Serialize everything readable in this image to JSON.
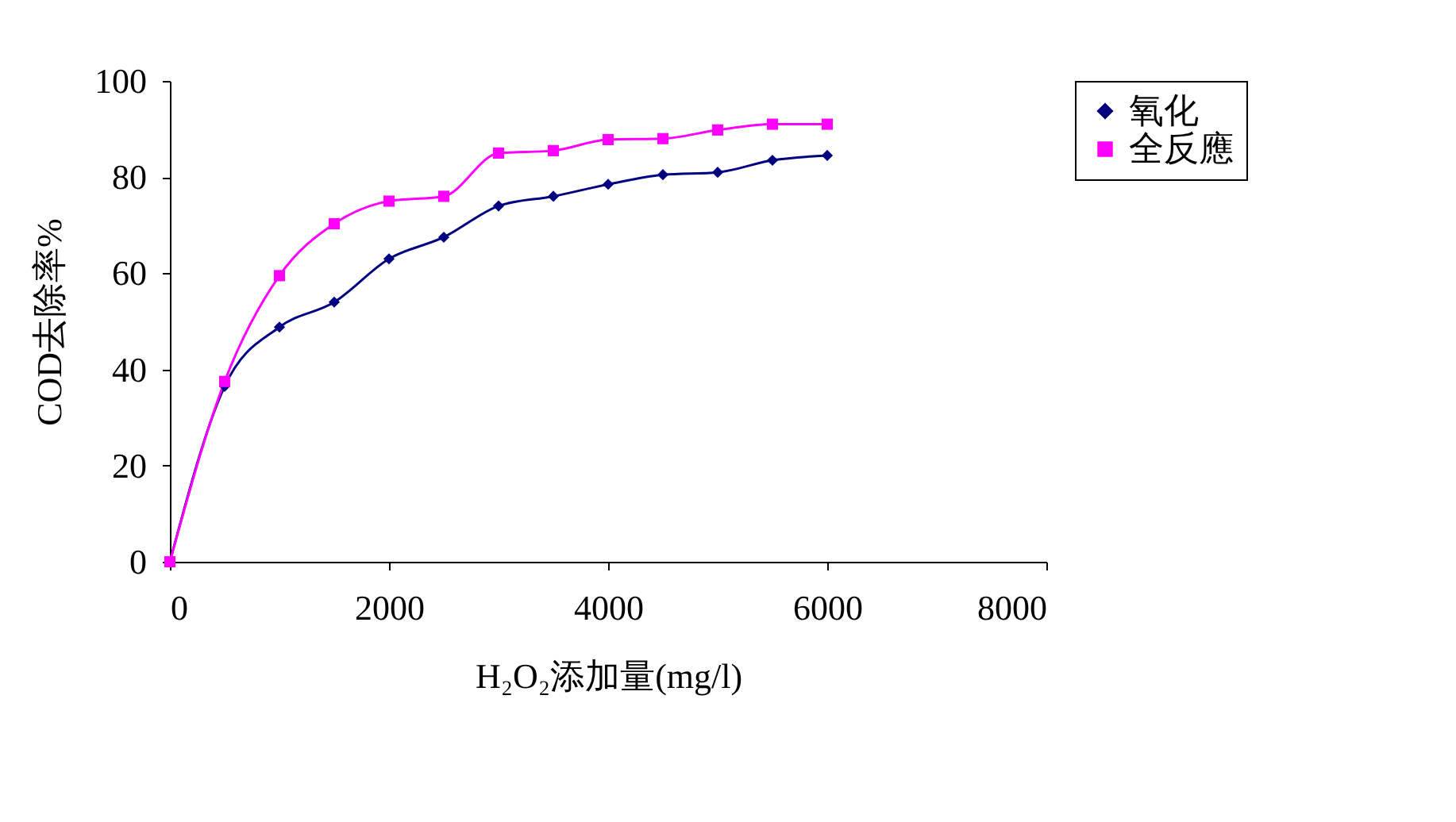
{
  "chart_data": {
    "type": "line",
    "xlabel": "H₂O₂添加量(mg/l)",
    "ylabel": "COD去除率%",
    "x": [
      0,
      500,
      1000,
      1500,
      2000,
      2500,
      3000,
      3500,
      4000,
      4500,
      5000,
      5500,
      6000
    ],
    "series": [
      {
        "name": "氧化",
        "color": "#000080",
        "marker": "diamond",
        "values": [
          0,
          36.5,
          48.8,
          54,
          63,
          67.5,
          74,
          76,
          78.5,
          80.5,
          81,
          83.5,
          84.5
        ]
      },
      {
        "name": "全反應",
        "color": "#ff00ff",
        "marker": "square",
        "values": [
          0,
          37.5,
          59.5,
          70.3,
          75,
          76,
          85,
          85.5,
          87.8,
          88,
          89.8,
          91,
          91
        ]
      }
    ],
    "xlim": [
      0,
      8000
    ],
    "xticks": [
      0,
      2000,
      4000,
      6000,
      8000
    ],
    "ylim": [
      0,
      100
    ],
    "yticks": [
      0,
      20,
      40,
      60,
      80,
      100
    ],
    "grid": false,
    "legend": "right",
    "line_style": "solid"
  }
}
